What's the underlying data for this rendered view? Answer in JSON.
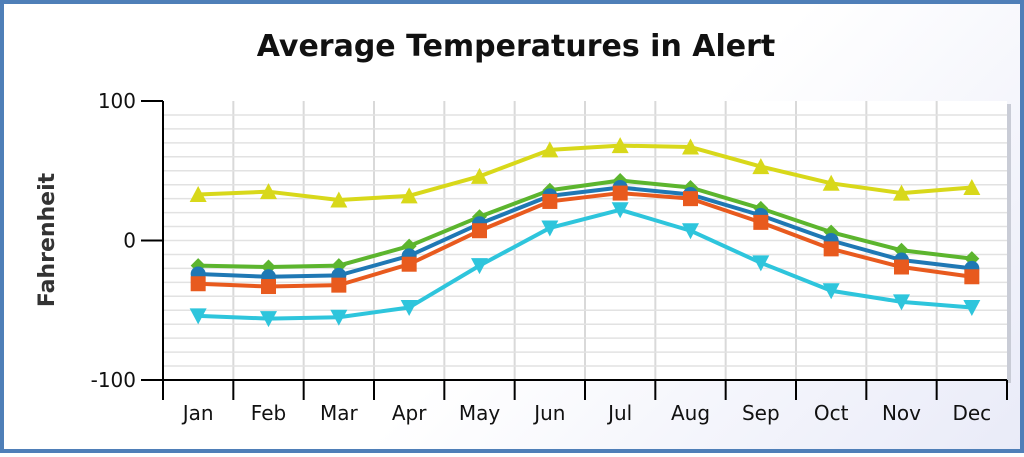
{
  "chart_data": {
    "type": "line",
    "title": "Average Temperatures in Alert",
    "xlabel": "",
    "ylabel": "Fahrenheit",
    "ylim": [
      -100,
      100
    ],
    "yticks": [
      "100",
      "0",
      "-100"
    ],
    "ytick_values": [
      100,
      0,
      -100
    ],
    "categories": [
      "Jan",
      "Feb",
      "Mar",
      "Apr",
      "May",
      "Jun",
      "Jul",
      "Aug",
      "Sep",
      "Oct",
      "Nov",
      "Dec"
    ],
    "grid": true,
    "legend": "none",
    "series": [
      {
        "color": "#d8d81a",
        "marker": "triangle-up",
        "values": [
          33,
          35,
          29,
          32,
          46,
          65,
          68,
          67,
          53,
          41,
          34,
          38
        ]
      },
      {
        "color": "#5cb52e",
        "marker": "diamond",
        "values": [
          -18,
          -19,
          -18,
          -4,
          17,
          36,
          43,
          38,
          23,
          6,
          -7,
          -13
        ]
      },
      {
        "color": "#1f78b4",
        "marker": "circle",
        "values": [
          -24,
          -26,
          -25,
          -11,
          12,
          32,
          38,
          33,
          18,
          0,
          -14,
          -20
        ]
      },
      {
        "color": "#e85a1e",
        "marker": "square",
        "values": [
          -31,
          -33,
          -32,
          -17,
          7,
          28,
          34,
          30,
          13,
          -6,
          -19,
          -26
        ]
      },
      {
        "color": "#2ec5dc",
        "marker": "triangle-down",
        "values": [
          -54,
          -56,
          -55,
          -48,
          -18,
          9,
          22,
          7,
          -16,
          -36,
          -44,
          -48
        ]
      }
    ]
  }
}
